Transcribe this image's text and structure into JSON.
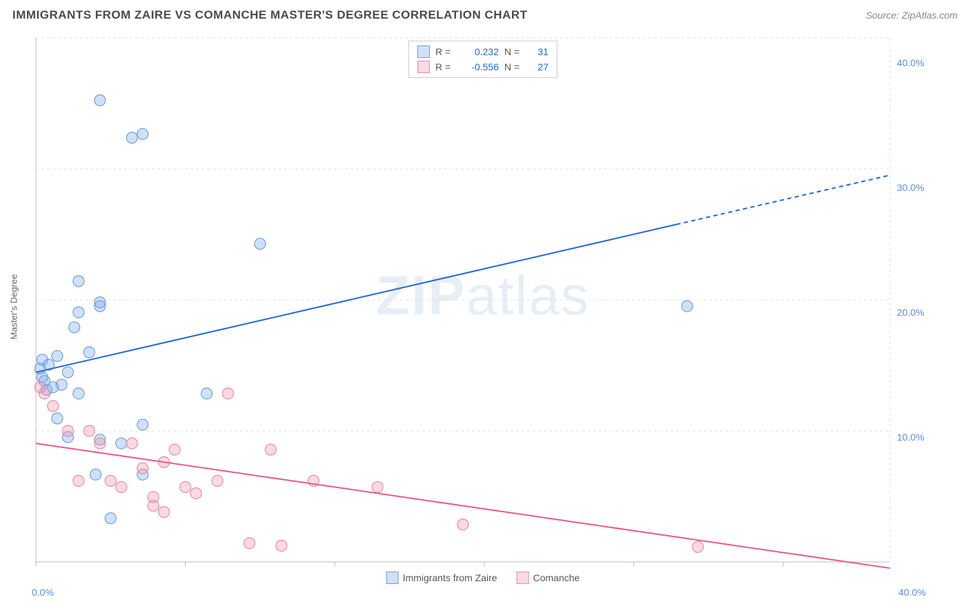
{
  "title": "IMMIGRANTS FROM ZAIRE VS COMANCHE MASTER'S DEGREE CORRELATION CHART",
  "source": "Source: ZipAtlas.com",
  "watermark": "ZIPatlas",
  "chart": {
    "type": "scatter",
    "ylabel": "Master's Degree",
    "background_color": "#ffffff",
    "grid_color": "#e0e0e0",
    "axis_line_color": "#bbbbbb",
    "tick_color": "#bbbbbb",
    "axis_label_color": "#5a8bd8",
    "xlim": [
      0,
      40
    ],
    "ylim": [
      0,
      42
    ],
    "x_ticks": [
      0,
      7,
      14,
      21,
      28,
      35
    ],
    "y_gridlines": [
      10.5,
      21,
      31.5,
      42
    ],
    "x_axis_labels": [
      {
        "pos": 0,
        "text": "0.0%"
      },
      {
        "pos": 40,
        "text": "40.0%"
      }
    ],
    "y_axis_labels": [
      {
        "pos": 10,
        "text": "10.0%"
      },
      {
        "pos": 20,
        "text": "20.0%"
      },
      {
        "pos": 30,
        "text": "30.0%"
      },
      {
        "pos": 40,
        "text": "40.0%"
      }
    ],
    "marker_radius": 8,
    "marker_stroke_width": 1.2,
    "line_width": 2,
    "series": [
      {
        "name": "Immigrants from Zaire",
        "color_fill": "rgba(120,170,230,0.35)",
        "color_stroke": "#6aa0dd",
        "line_color": "#2266dd",
        "R": "0.232",
        "N": "31",
        "points": [
          [
            0.2,
            15.5
          ],
          [
            0.3,
            16.2
          ],
          [
            0.4,
            14.5
          ],
          [
            0.5,
            13.8
          ],
          [
            0.6,
            15.8
          ],
          [
            0.8,
            14.0
          ],
          [
            1.0,
            16.5
          ],
          [
            1.2,
            14.2
          ],
          [
            1.5,
            15.2
          ],
          [
            1.0,
            11.5
          ],
          [
            1.5,
            10.0
          ],
          [
            2.0,
            13.5
          ],
          [
            2.5,
            16.8
          ],
          [
            2.0,
            22.5
          ],
          [
            2.0,
            20.0
          ],
          [
            3.0,
            20.5
          ],
          [
            3.0,
            20.8
          ],
          [
            1.8,
            18.8
          ],
          [
            3.0,
            37.0
          ],
          [
            4.5,
            34.0
          ],
          [
            5.0,
            34.3
          ],
          [
            10.5,
            25.5
          ],
          [
            8.0,
            13.5
          ],
          [
            4.0,
            9.5
          ],
          [
            5.0,
            11.0
          ],
          [
            3.0,
            9.8
          ],
          [
            2.8,
            7.0
          ],
          [
            3.5,
            3.5
          ],
          [
            5.0,
            7.0
          ],
          [
            30.5,
            20.5
          ],
          [
            0.3,
            14.8
          ]
        ],
        "trend": {
          "x1": 0,
          "y1": 15.2,
          "x2": 40,
          "y2": 31.0,
          "dash_from_x": 30
        }
      },
      {
        "name": "Comanche",
        "color_fill": "rgba(240,150,170,0.35)",
        "color_stroke": "#e78aa5",
        "line_color": "#e85a8a",
        "R": "-0.556",
        "N": "27",
        "points": [
          [
            0.2,
            14.0
          ],
          [
            0.4,
            13.5
          ],
          [
            0.8,
            12.5
          ],
          [
            1.5,
            10.5
          ],
          [
            2.0,
            6.5
          ],
          [
            2.5,
            10.5
          ],
          [
            3.0,
            9.5
          ],
          [
            3.5,
            6.5
          ],
          [
            4.0,
            6.0
          ],
          [
            4.5,
            9.5
          ],
          [
            5.0,
            7.5
          ],
          [
            5.5,
            4.5
          ],
          [
            5.5,
            5.2
          ],
          [
            6.0,
            8.0
          ],
          [
            6.5,
            9.0
          ],
          [
            6.0,
            4.0
          ],
          [
            7.0,
            6.0
          ],
          [
            7.5,
            5.5
          ],
          [
            8.5,
            6.5
          ],
          [
            9.0,
            13.5
          ],
          [
            10.0,
            1.5
          ],
          [
            11.0,
            9.0
          ],
          [
            13.0,
            6.5
          ],
          [
            16.0,
            6.0
          ],
          [
            20.0,
            3.0
          ],
          [
            11.5,
            1.3
          ],
          [
            31.0,
            1.2
          ]
        ],
        "trend": {
          "x1": 0,
          "y1": 9.5,
          "x2": 40,
          "y2": -0.5
        }
      }
    ],
    "legend_top": {
      "r_label": "R =",
      "n_label": "N ="
    },
    "legend_bottom": [
      {
        "label": "Immigrants from Zaire",
        "fill": "rgba(120,170,230,0.35)",
        "stroke": "#6aa0dd"
      },
      {
        "label": "Comanche",
        "fill": "rgba(240,150,170,0.35)",
        "stroke": "#e78aa5"
      }
    ]
  }
}
